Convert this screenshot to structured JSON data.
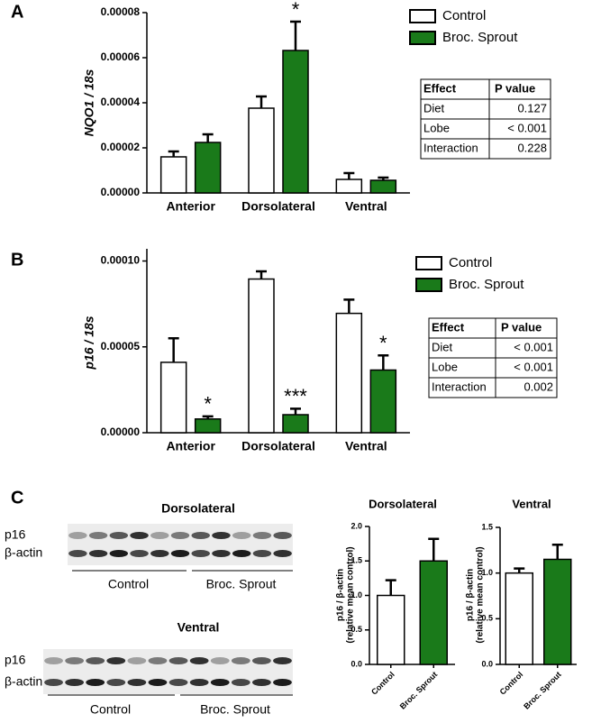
{
  "panel_labels": [
    "A",
    "B",
    "C"
  ],
  "chart_data": [
    {
      "type": "bar",
      "ylabel": "NQO1 / 18s",
      "categories": [
        "Anterior",
        "Dorsolateral",
        "Ventral"
      ],
      "series": [
        {
          "name": "Control",
          "color": "#ffffff",
          "values": [
            1.6e-05,
            3.76e-05,
            6e-06
          ],
          "errors": [
            2.4e-06,
            5.2e-06,
            2.8e-06
          ]
        },
        {
          "name": "Broc. Sprout",
          "color": "#1a7a1a",
          "values": [
            2.24e-05,
            6.32e-05,
            5.6e-06
          ],
          "errors": [
            3.6e-06,
            1.28e-05,
            1.2e-06
          ],
          "significance": [
            null,
            "*",
            null
          ]
        }
      ],
      "ylim": [
        0,
        8e-05
      ],
      "yticks": [
        {
          "value": 0,
          "label": "0.00000"
        },
        {
          "value": 2e-05,
          "label": "0.00002"
        },
        {
          "value": 4e-05,
          "label": "0.00004"
        },
        {
          "value": 6e-05,
          "label": "0.00006"
        },
        {
          "value": 8e-05,
          "label": "0.00008"
        }
      ]
    },
    {
      "type": "bar",
      "ylabel": "p16 / 18s",
      "categories": [
        "Anterior",
        "Dorsolateral",
        "Ventral"
      ],
      "series": [
        {
          "name": "Control",
          "color": "#ffffff",
          "values": [
            4.1e-05,
            8.95e-05,
            6.95e-05
          ],
          "errors": [
            1.4e-05,
            4.5e-06,
            8e-06
          ]
        },
        {
          "name": "Broc. Sprout",
          "color": "#1a7a1a",
          "values": [
            8e-06,
            1.05e-05,
            3.65e-05
          ],
          "errors": [
            1.5e-06,
            3.5e-06,
            8.5e-06
          ],
          "significance": [
            "*",
            "***",
            "*"
          ]
        }
      ],
      "ylim": [
        0,
        0.000105
      ],
      "yticks": [
        {
          "value": 0,
          "label": "0.00000"
        },
        {
          "value": 5e-05,
          "label": "0.00005"
        },
        {
          "value": 0.0001,
          "label": "0.00010"
        }
      ]
    },
    {
      "type": "bar",
      "title": "Dorsolateral",
      "ylabel": [
        "p16 / β-actin",
        "(relative mean control)"
      ],
      "categories": [
        "Control",
        "Broc. Sprout"
      ],
      "colors": [
        "#ffffff",
        "#1a7a1a"
      ],
      "values": [
        1.0,
        1.5
      ],
      "errors": [
        0.22,
        0.32
      ],
      "ylim": [
        0,
        2.0
      ],
      "yticks": [
        {
          "value": 0,
          "label": "0.0"
        },
        0.5,
        {
          "value": 1,
          "label": "1.0"
        },
        1.5,
        {
          "value": 2,
          "label": "2.0"
        }
      ]
    },
    {
      "type": "bar",
      "title": "Ventral",
      "ylabel": [
        "p16 / β-actin",
        "(relative mean control)"
      ],
      "categories": [
        "Control",
        "Broc. Sprout"
      ],
      "colors": [
        "#ffffff",
        "#1a7a1a"
      ],
      "values": [
        1.0,
        1.15
      ],
      "errors": [
        0.05,
        0.16
      ],
      "ylim": [
        0,
        1.5
      ],
      "yticks": [
        {
          "value": 0,
          "label": "0.0"
        },
        0.5,
        {
          "value": 1,
          "label": "1.0"
        },
        1.5
      ]
    }
  ],
  "tables": [
    {
      "header": [
        "Effect",
        "P value"
      ],
      "rows": [
        [
          "Diet",
          "0.127"
        ],
        [
          "Lobe",
          "< 0.001"
        ],
        [
          "Interaction",
          "0.228"
        ]
      ]
    },
    {
      "header": [
        "Effect",
        "P value"
      ],
      "rows": [
        [
          "Diet",
          "< 0.001"
        ],
        [
          "Lobe",
          "< 0.001"
        ],
        [
          "Interaction",
          "0.002"
        ]
      ]
    }
  ],
  "blots": [
    {
      "title": "Dorsolateral",
      "rows": [
        "p16",
        "β-actin"
      ],
      "groups": [
        "Control",
        "Broc. Sprout"
      ]
    },
    {
      "title": "Ventral",
      "rows": [
        "p16",
        "β-actin"
      ],
      "groups": [
        "Control",
        "Broc. Sprout"
      ]
    }
  ]
}
